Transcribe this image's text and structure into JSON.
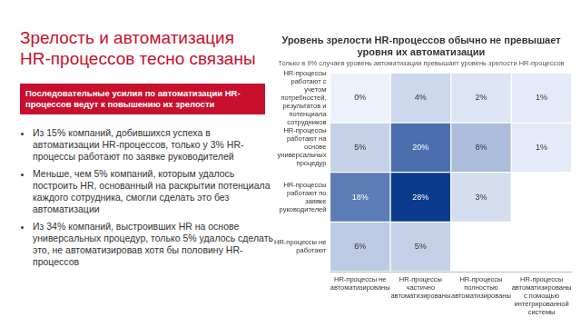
{
  "slide": {
    "title": "Зрелость и автоматизация HR-процессов тесно связаны",
    "callout": "Последовательные усилия по автоматизации HR-процессов ведут к повышению их зрелости",
    "bullets": [
      "Из 15% компаний, добившихся успеха в автоматизации HR-процессов, только у 3% HR-процессы работают по заявке руководителей",
      "Меньше, чем 5% компаний, которым удалось построить HR, основанный на раскрытии потенциала каждого сотрудника, смогли сделать это без автоматизации",
      "Из 34% компаний, выстроивших HR на основе универсальных процедур, только 5% удалось сделать это, не автоматизировав хотя бы половину HR-процессов"
    ]
  },
  "chart_data": {
    "type": "heatmap",
    "title": "Уровень зрелости HR-процессов обычно не превышает уровня их автоматизации",
    "subtitle": "Только в 9% случаев уровень автоматизации превышает уровень зрелости HR-процессов",
    "categories": [
      "HR-процессы не автоматизированы",
      "HR-процессы частично автоматизированы",
      "HR-процессы полностью автоматизированы",
      "HR-процессы автоматизированы с помощью интегрированной системы"
    ],
    "y_categories": [
      "HR-процессы работают с учетом потребностей, результатов и потенциала сотрудников",
      "HR-процессы работают на основе универсальных процедур",
      "HR-процессы работают по заявке руководителей",
      "HR-процессы не работают"
    ],
    "values": [
      [
        0,
        4,
        2,
        1
      ],
      [
        5,
        20,
        8,
        1
      ],
      [
        18,
        28,
        3,
        null
      ],
      [
        6,
        5,
        null,
        null
      ]
    ],
    "value_labels": [
      [
        "0%",
        "4%",
        "2%",
        "1%"
      ],
      [
        "5%",
        "20%",
        "8%",
        "1%"
      ],
      [
        "18%",
        "28%",
        "3%",
        null
      ],
      [
        "6%",
        "5%",
        null,
        null
      ]
    ],
    "data_labels": true,
    "grid": false
  }
}
